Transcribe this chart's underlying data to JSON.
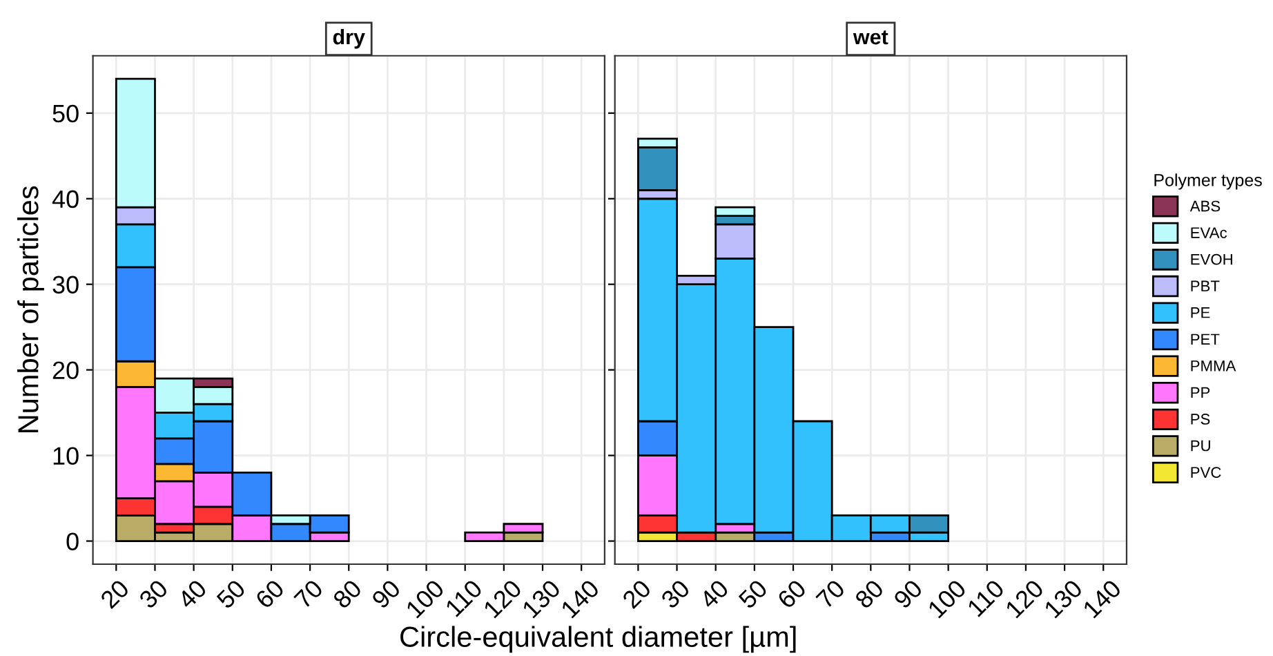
{
  "chart_data": [
    {
      "type": "bar",
      "title": "dry",
      "xlabel": "Circle-equivalent diameter [µm]",
      "ylabel": "Number of particles",
      "legend_title": "Polymer types",
      "legend": "right",
      "stacked": true,
      "grid": true,
      "x": [
        25,
        35,
        45,
        55,
        65,
        75,
        85,
        95,
        105,
        115,
        125
      ],
      "xlim": [
        14,
        146
      ],
      "xticks": [
        20,
        30,
        40,
        50,
        60,
        70,
        80,
        90,
        100,
        110,
        120,
        130,
        140
      ],
      "ylim": [
        -2.7,
        56.7
      ],
      "yticks": [
        0,
        10,
        20,
        30,
        40,
        50
      ],
      "series": [
        {
          "name": "PVC",
          "color": "#f1e733",
          "values": [
            null,
            null,
            null,
            null,
            null,
            null,
            null,
            null,
            null,
            null,
            null
          ]
        },
        {
          "name": "PU",
          "color": "#b9ac66",
          "values": [
            3,
            1,
            2,
            null,
            null,
            null,
            null,
            null,
            null,
            null,
            1
          ]
        },
        {
          "name": "PS",
          "color": "#fe3333",
          "values": [
            2,
            1,
            2,
            null,
            null,
            null,
            null,
            null,
            null,
            null,
            null
          ]
        },
        {
          "name": "PP",
          "color": "#fe77fc",
          "values": [
            13,
            5,
            4,
            3,
            null,
            1,
            null,
            null,
            null,
            1,
            1
          ]
        },
        {
          "name": "PMMA",
          "color": "#fdb833",
          "values": [
            3,
            2,
            null,
            null,
            null,
            null,
            null,
            null,
            null,
            null,
            null
          ]
        },
        {
          "name": "PET",
          "color": "#3388fd",
          "values": [
            11,
            3,
            6,
            5,
            2,
            2,
            null,
            null,
            null,
            null,
            null
          ]
        },
        {
          "name": "PE",
          "color": "#33c1fd",
          "values": [
            5,
            3,
            2,
            null,
            null,
            null,
            null,
            null,
            null,
            null,
            null
          ]
        },
        {
          "name": "PBT",
          "color": "#bcbcfa",
          "values": [
            2,
            null,
            null,
            null,
            null,
            null,
            null,
            null,
            null,
            null,
            null
          ]
        },
        {
          "name": "EVOH",
          "color": "#3391bd",
          "values": [
            null,
            null,
            null,
            null,
            null,
            null,
            null,
            null,
            null,
            null,
            null
          ]
        },
        {
          "name": "EVAc",
          "color": "#bbfbfb",
          "values": [
            15,
            4,
            2,
            null,
            1,
            null,
            null,
            null,
            null,
            null,
            null
          ]
        },
        {
          "name": "ABS",
          "color": "#8b3456",
          "values": [
            null,
            null,
            1,
            null,
            null,
            null,
            null,
            null,
            null,
            null,
            null
          ]
        }
      ]
    },
    {
      "type": "bar",
      "title": "wet",
      "stacked": true,
      "grid": true,
      "tick_labels": "x",
      "x": [
        25,
        35,
        45,
        55,
        65,
        75,
        85,
        95
      ],
      "xlim": [
        14,
        146
      ],
      "xticks": [
        20,
        30,
        40,
        50,
        60,
        70,
        80,
        90,
        100,
        110,
        120,
        130,
        140
      ],
      "ylim": [
        -2.7,
        56.7
      ],
      "yticks": [
        0,
        10,
        20,
        30,
        40,
        50
      ],
      "series": [
        {
          "color": "#f1e733",
          "values": [
            1,
            null,
            null,
            null,
            null,
            null,
            null,
            null
          ]
        },
        {
          "color": "#b9ac66",
          "values": [
            null,
            null,
            1,
            null,
            null,
            null,
            null,
            null
          ]
        },
        {
          "color": "#fe3333",
          "values": [
            2,
            1,
            null,
            null,
            null,
            null,
            null,
            null
          ]
        },
        {
          "color": "#fe77fc",
          "values": [
            7,
            null,
            1,
            null,
            null,
            null,
            null,
            null
          ]
        },
        {
          "color": "#3388fd",
          "values": [
            4,
            null,
            null,
            1,
            null,
            null,
            1,
            null
          ]
        },
        {
          "color": "#33c1fd",
          "values": [
            26,
            29,
            31,
            24,
            14,
            3,
            2,
            1
          ]
        },
        {
          "color": "#bcbcfa",
          "values": [
            1,
            1,
            4,
            null,
            null,
            null,
            null,
            null
          ]
        },
        {
          "color": "#3391bd",
          "values": [
            5,
            null,
            1,
            null,
            null,
            null,
            null,
            2
          ]
        },
        {
          "color": "#bbfbfb",
          "values": [
            1,
            null,
            1,
            null,
            null,
            null,
            null,
            null
          ]
        }
      ]
    }
  ]
}
